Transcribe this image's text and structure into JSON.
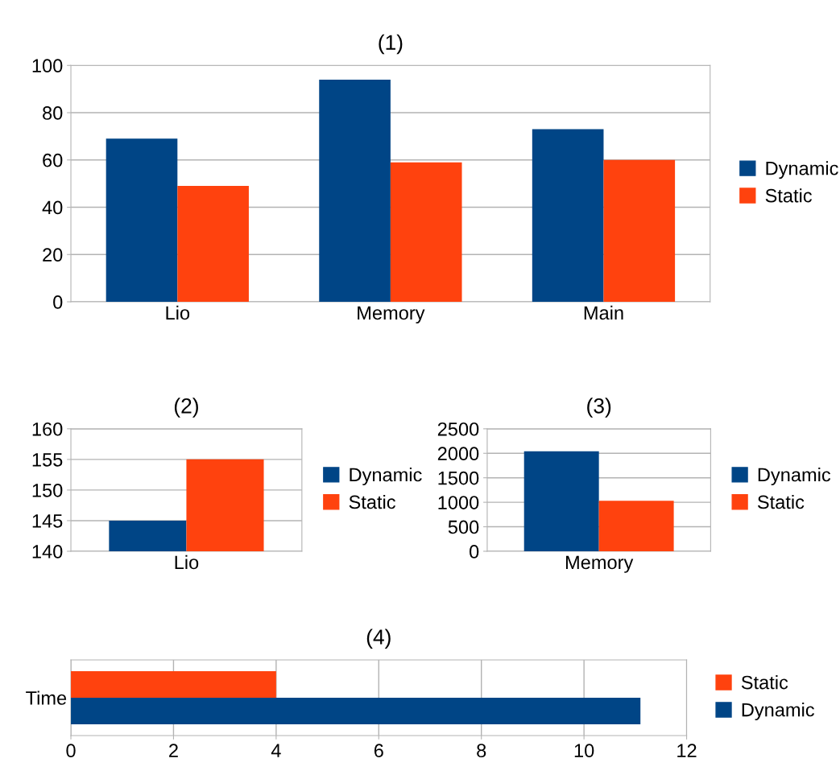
{
  "chart_data": [
    {
      "type": "bar",
      "title": "(1)",
      "categories": [
        "Lio",
        "Memory",
        "Main"
      ],
      "ylim": [
        0,
        100
      ],
      "yticks": [
        0,
        20,
        40,
        60,
        80,
        100
      ],
      "grid": "y",
      "legend": "right",
      "series": [
        {
          "name": "Dynamic",
          "color": "#004586",
          "values": [
            69,
            94,
            73
          ]
        },
        {
          "name": "Static",
          "color": "#ff420e",
          "values": [
            49,
            59,
            60
          ]
        }
      ]
    },
    {
      "type": "bar",
      "title": "(2)",
      "categories": [
        "Lio"
      ],
      "ylim": [
        140,
        160
      ],
      "yticks": [
        140,
        145,
        150,
        155,
        160
      ],
      "grid": "y",
      "legend": "right",
      "series": [
        {
          "name": "Dynamic",
          "color": "#004586",
          "values": [
            145
          ]
        },
        {
          "name": "Static",
          "color": "#ff420e",
          "values": [
            155
          ]
        }
      ]
    },
    {
      "type": "bar",
      "title": "(3)",
      "categories": [
        "Memory"
      ],
      "ylim": [
        0,
        2500
      ],
      "yticks": [
        0,
        500,
        1000,
        1500,
        2000,
        2500
      ],
      "grid": "y",
      "legend": "right",
      "series": [
        {
          "name": "Dynamic",
          "color": "#004586",
          "values": [
            2040
          ]
        },
        {
          "name": "Static",
          "color": "#ff420e",
          "values": [
            1030
          ]
        }
      ]
    },
    {
      "type": "bar",
      "title": "(4)",
      "orientation": "horizontal",
      "categories": [
        "Time"
      ],
      "xlim": [
        0,
        12
      ],
      "xticks": [
        0,
        2,
        4,
        6,
        8,
        10,
        12
      ],
      "grid": "x",
      "legend": "right",
      "series": [
        {
          "name": "Static",
          "color": "#ff420e",
          "values": [
            4
          ]
        },
        {
          "name": "Dynamic",
          "color": "#004586",
          "values": [
            11.1
          ]
        }
      ]
    }
  ]
}
